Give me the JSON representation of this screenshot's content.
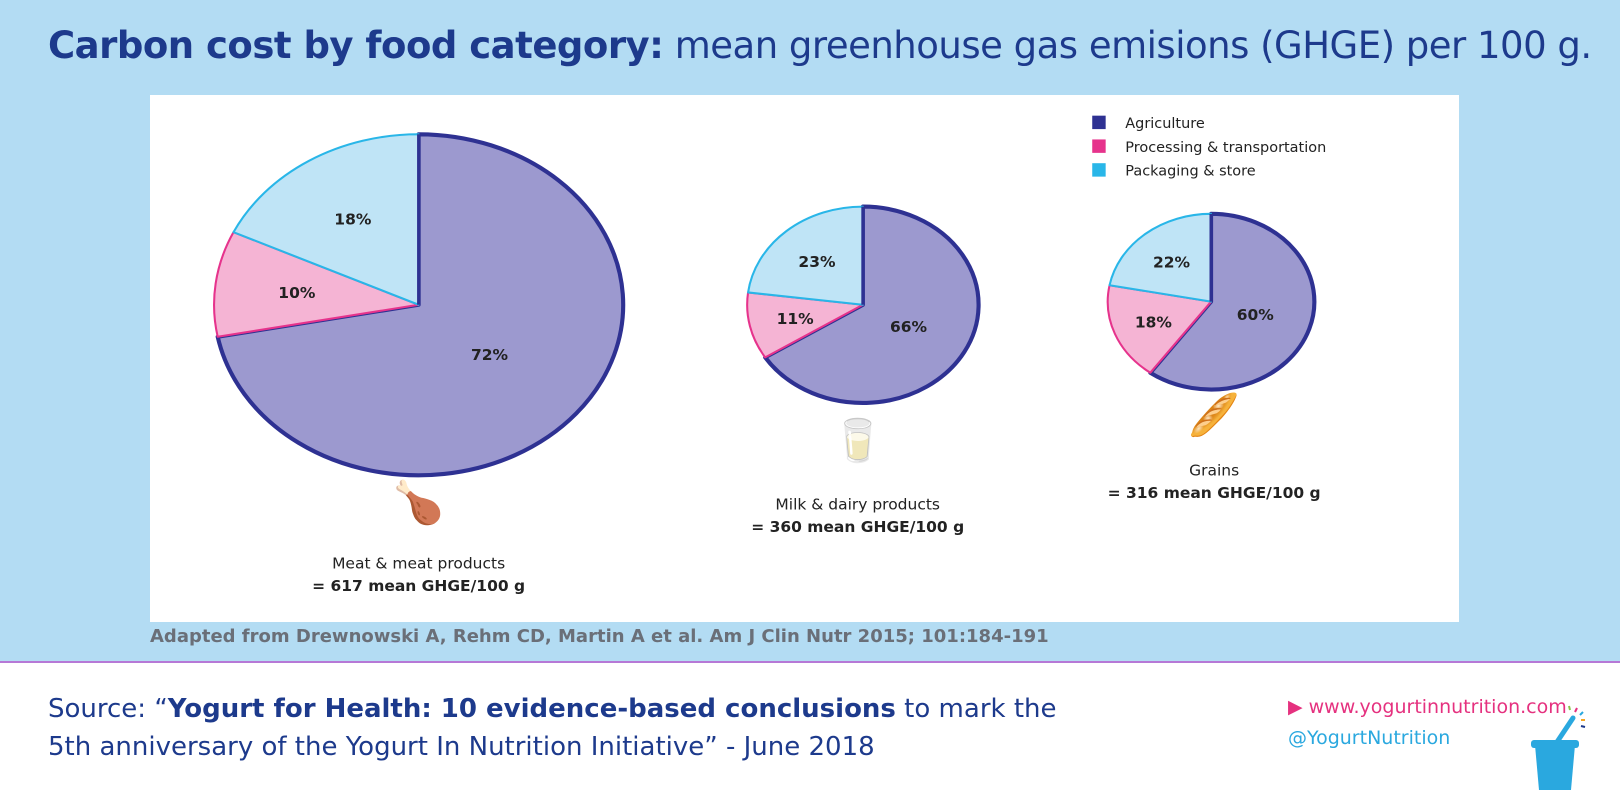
{
  "header": {
    "title_bold": "Carbon cost by food category:",
    "title_rest": " mean greenhouse gas emisions (GHGE) per 100 g."
  },
  "chart_data": {
    "type": "pie",
    "legend": {
      "placement": "top-right",
      "entries": [
        "Agriculture",
        "Processing & transportation",
        "Packaging & store"
      ]
    },
    "colors": {
      "Agriculture": "#2e3192",
      "Processing & transportation": "#e6338c",
      "Packaging & store": "#29b6e8"
    },
    "fills": {
      "Agriculture": "#9c99cf",
      "Processing & transportation": "#f5b4d4",
      "Packaging & store": "#bfe4f6"
    },
    "pies": [
      {
        "name": "Meat & meat products",
        "value_label": "= 617 mean GHGE/100 g",
        "total": 617,
        "slices": [
          72,
          10,
          18
        ],
        "labels": [
          "72%",
          "10%",
          "18%"
        ]
      },
      {
        "name": "Milk & dairy products",
        "value_label": "= 360 mean GHGE/100 g",
        "total": 360,
        "slices": [
          66,
          11,
          23
        ],
        "labels": [
          "66%",
          "11%",
          "23%"
        ]
      },
      {
        "name": "Grains",
        "value_label": "= 316 mean GHGE/100 g",
        "total": 316,
        "slices": [
          60,
          18,
          22
        ],
        "labels": [
          "60%",
          "18%",
          "22%"
        ]
      }
    ]
  },
  "attribution": "Adapted from Drewnowski A, Rehm CD, Martin A et al. Am J Clin Nutr 2015; 101:184-191",
  "footer": {
    "source_prefix": "Source: “",
    "source_bold": "Yogurt for Health: 10 evidence-based conclusions",
    "source_rest": " to mark the",
    "source_line2": "5th anniversary of the Yogurt In Nutrition Initiative” - June 2018",
    "website": "www.yogurtinnutrition.com",
    "twitter": "@YogurtNutrition"
  }
}
